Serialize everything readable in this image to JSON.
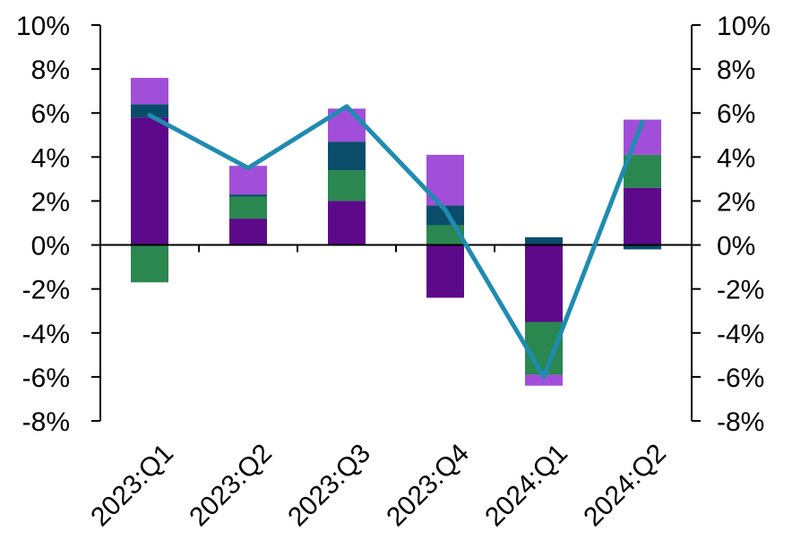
{
  "chart_data": {
    "type": "bar",
    "stacked": true,
    "categories": [
      "2023:Q1",
      "2023:Q2",
      "2023:Q3",
      "2023:Q4",
      "2024:Q1",
      "2024:Q2"
    ],
    "series": [
      {
        "type": "bar",
        "color": "#5c0a8a",
        "values": [
          5.8,
          1.2,
          2.0,
          -2.4,
          -3.5,
          2.6
        ]
      },
      {
        "type": "bar",
        "color": "#2a8750",
        "values": [
          -1.7,
          1.0,
          1.4,
          0.9,
          -2.4,
          1.5
        ]
      },
      {
        "type": "bar",
        "color": "#0a4d6b",
        "values": [
          0.6,
          0.1,
          1.3,
          0.9,
          0.35,
          -0.2
        ]
      },
      {
        "type": "bar",
        "color": "#a14fd9",
        "values": [
          1.2,
          1.3,
          1.5,
          2.3,
          -0.5,
          1.6
        ]
      },
      {
        "type": "line",
        "color": "#1f8bb0",
        "values": [
          5.9,
          3.5,
          6.3,
          1.6,
          -6.0,
          5.6
        ]
      }
    ],
    "ylim": [
      -8,
      10
    ],
    "y_ticks": [
      "10%",
      "8%",
      "6%",
      "4%",
      "2%",
      "0%",
      "-2%",
      "-4%",
      "-6%",
      "-8%"
    ],
    "y_tick_values": [
      10,
      8,
      6,
      4,
      2,
      0,
      -2,
      -4,
      -6,
      -8
    ],
    "dual_axis": true,
    "grid": false,
    "title": "",
    "xlabel": "",
    "ylabel": ""
  }
}
